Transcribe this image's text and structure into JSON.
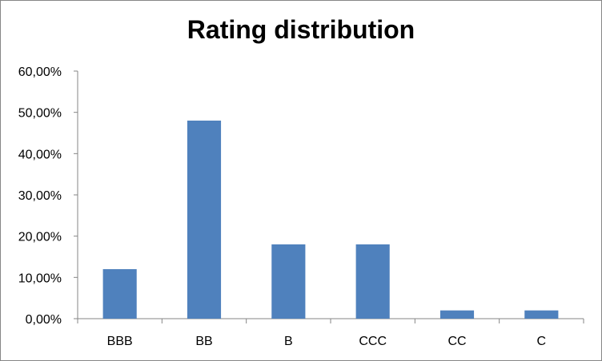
{
  "chart_data": {
    "type": "bar",
    "title": "Rating distribution",
    "xlabel": "",
    "ylabel": "",
    "categories": [
      "BBB",
      "BB",
      "B",
      "CCC",
      "CC",
      "C"
    ],
    "values": [
      12,
      48,
      18,
      18,
      2,
      2
    ],
    "value_unit": "percent",
    "ylim": [
      0,
      60
    ],
    "y_ticks": [
      0,
      10,
      20,
      30,
      40,
      50,
      60
    ],
    "y_tick_labels": [
      "0,00%",
      "10,00%",
      "20,00%",
      "30,00%",
      "40,00%",
      "50,00%",
      "60,00%"
    ],
    "grid": false,
    "legend": "none",
    "bar_color": "#4F81BD"
  }
}
